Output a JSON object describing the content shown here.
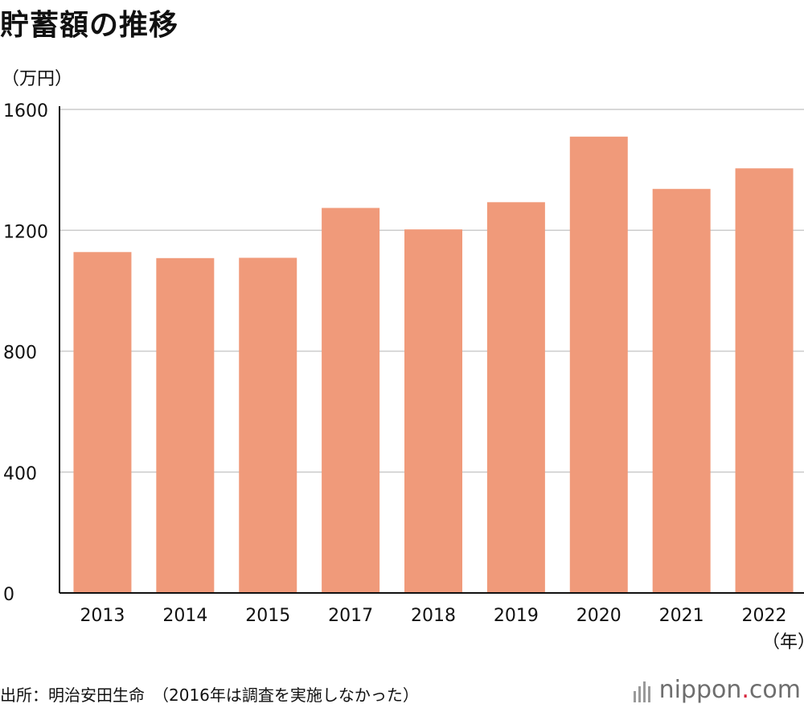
{
  "title": "貯蓄額の推移",
  "unit_label": "（万円）",
  "x_unit_label": "（年）",
  "source": "出所：明治安田生命　（2016年は調査を実施しなかった）",
  "logo": {
    "name": "nippon",
    "dot": ".",
    "tld": "com",
    "accent": "#d7263d"
  },
  "colors": {
    "bar": "#f09a7a",
    "grid": "#cccccc",
    "axis": "#111111"
  },
  "chart_data": {
    "type": "bar",
    "title": "貯蓄額の推移",
    "ylabel": "（万円）",
    "xlabel": "（年）",
    "categories": [
      "2013",
      "2014",
      "2015",
      "2017",
      "2018",
      "2019",
      "2020",
      "2021",
      "2022"
    ],
    "values": [
      1128,
      1108,
      1109,
      1274,
      1203,
      1293,
      1510,
      1337,
      1405
    ],
    "ylim": [
      0,
      1600
    ],
    "yticks": [
      0,
      400,
      800,
      1200,
      1600
    ],
    "grid": true
  }
}
